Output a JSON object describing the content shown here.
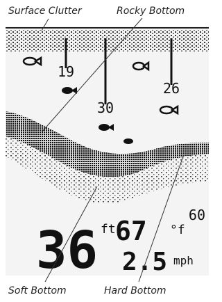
{
  "callouts": {
    "top": [
      "Surface Clutter",
      "Rocky Bottom"
    ],
    "bottom": [
      "Soft Bottom",
      "Hard Bottom"
    ]
  },
  "fish_depths": [
    "19",
    "30",
    "26"
  ],
  "scale_max": "60",
  "readouts": {
    "depth": "36",
    "depth_unit": "ft",
    "temperature": "67",
    "temperature_unit": "°f",
    "speed": "2.5",
    "speed_unit": "mph"
  }
}
